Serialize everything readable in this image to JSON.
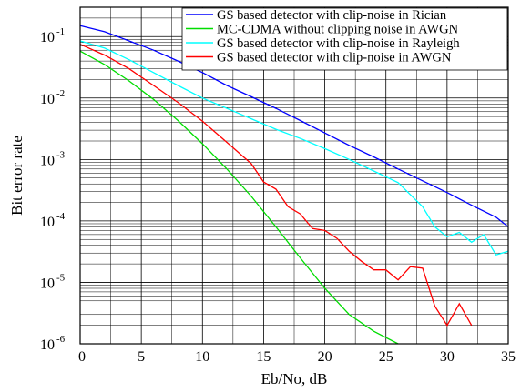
{
  "chart_data": {
    "type": "line",
    "xlabel": "Eb/No, dB",
    "ylabel": "Bit error rate",
    "xlim": [
      0,
      35
    ],
    "ylim": [
      1e-06,
      0.3
    ],
    "yscale": "log",
    "grid": true,
    "legend_position": "top-right",
    "x_ticks": [
      "0",
      "5",
      "10",
      "15",
      "20",
      "25",
      "30",
      "35"
    ],
    "y_ticks": [
      {
        "base": "10",
        "exp": "-1",
        "value": 0.1
      },
      {
        "base": "10",
        "exp": "-2",
        "value": 0.01
      },
      {
        "base": "10",
        "exp": "-3",
        "value": 0.001
      },
      {
        "base": "10",
        "exp": "-4",
        "value": 0.0001
      },
      {
        "base": "10",
        "exp": "-5",
        "value": 1e-05
      },
      {
        "base": "10",
        "exp": "-6",
        "value": 1e-06
      }
    ],
    "series": [
      {
        "name": "GS based detector with clip-noise in Rician",
        "color": "#0000ff",
        "x": [
          0,
          2,
          4,
          6,
          8,
          10,
          12,
          14,
          16,
          18,
          20,
          22,
          24,
          26,
          28,
          30,
          32,
          34,
          35
        ],
        "y": [
          0.15,
          0.12,
          0.085,
          0.06,
          0.04,
          0.026,
          0.016,
          0.0105,
          0.0068,
          0.0043,
          0.0027,
          0.0017,
          0.0011,
          0.0007,
          0.00045,
          0.00029,
          0.00018,
          0.000115,
          8e-05
        ]
      },
      {
        "name": "MC-CDMA without clipping noise in AWGN",
        "color": "#00dd00",
        "x": [
          0,
          2,
          4,
          6,
          8,
          10,
          12,
          14,
          16,
          18,
          20,
          22,
          24,
          26
        ],
        "y": [
          0.058,
          0.035,
          0.019,
          0.0095,
          0.0043,
          0.0018,
          0.0007,
          0.00025,
          8e-05,
          2.5e-05,
          8e-06,
          3e-06,
          1.6e-06,
          1e-06
        ]
      },
      {
        "name": "GS based detector with clip-noise in Rayleigh",
        "color": "#00ffff",
        "x": [
          0,
          2,
          4,
          6,
          8,
          10,
          12,
          14,
          16,
          18,
          20,
          22,
          24,
          26,
          28,
          29,
          30,
          31,
          32,
          33,
          34,
          35
        ],
        "y": [
          0.085,
          0.065,
          0.042,
          0.026,
          0.016,
          0.01,
          0.0068,
          0.0046,
          0.0031,
          0.0022,
          0.0015,
          0.001,
          0.00065,
          0.00042,
          0.00017,
          8e-05,
          5.5e-05,
          6.5e-05,
          4.5e-05,
          6e-05,
          2.8e-05,
          3.2e-05
        ]
      },
      {
        "name": "GS based detector with clip-noise in AWGN",
        "color": "#ff0000",
        "x": [
          0,
          2,
          4,
          6,
          8,
          10,
          12,
          14,
          15,
          16,
          17,
          18,
          19,
          20,
          21,
          22,
          23,
          24,
          25,
          26,
          27,
          28,
          29,
          30,
          31,
          32
        ],
        "y": [
          0.075,
          0.05,
          0.03,
          0.016,
          0.0085,
          0.0042,
          0.0019,
          0.00085,
          0.00043,
          0.00033,
          0.00017,
          0.00013,
          7.5e-05,
          7e-05,
          5.2e-05,
          3.2e-05,
          2.2e-05,
          1.6e-05,
          1.6e-05,
          1.1e-05,
          1.8e-05,
          1.7e-05,
          4.1e-06,
          2e-06,
          4.5e-06,
          2e-06
        ]
      }
    ]
  }
}
